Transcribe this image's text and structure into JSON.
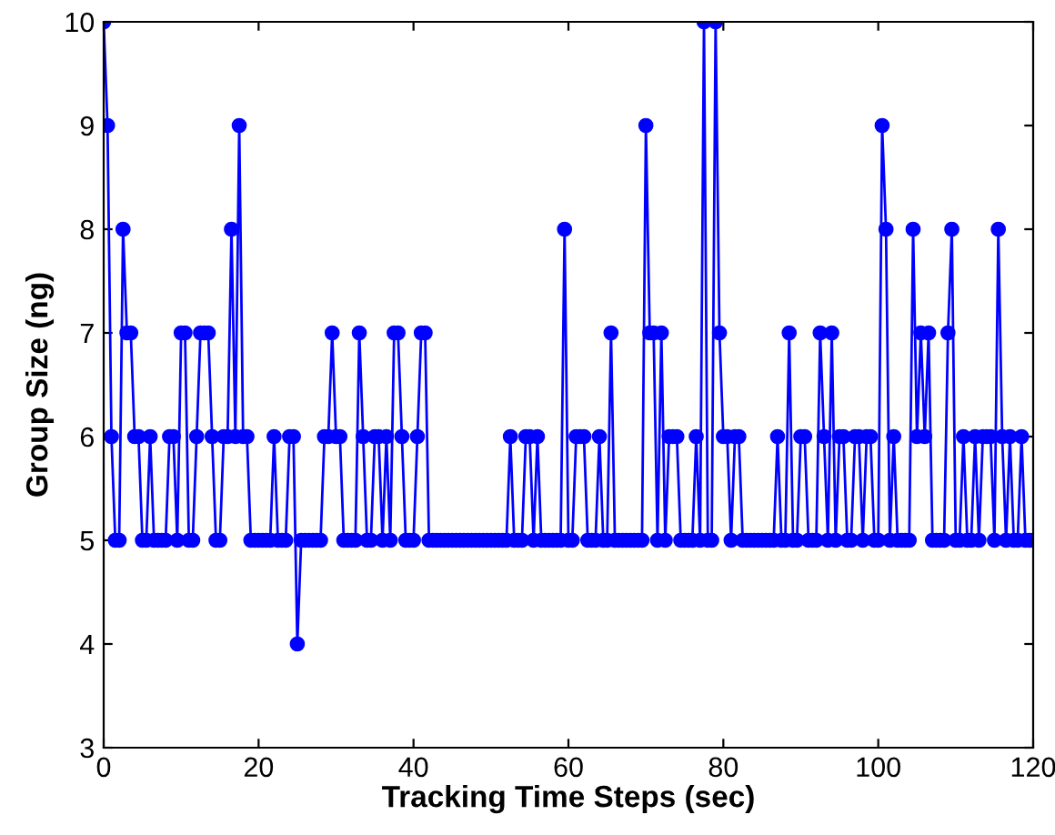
{
  "chart_data": {
    "type": "line",
    "xlabel": "Tracking Time Steps (sec)",
    "ylabel": "Group Size (ng)",
    "xlim": [
      0,
      120
    ],
    "xticks": [
      0,
      20,
      40,
      60,
      80,
      100,
      120
    ],
    "ylim": [
      3,
      10
    ],
    "yticks": [
      3,
      4,
      5,
      6,
      7,
      8,
      9,
      10
    ],
    "grid": false,
    "marker": "circle",
    "line_style": "solid",
    "series": [
      {
        "color": "#0000ff",
        "x": [
          0,
          0.5,
          1,
          1.5,
          2,
          2.5,
          3,
          3.5,
          4,
          4.5,
          5,
          5.5,
          6,
          6.5,
          7,
          7.5,
          8,
          8.5,
          9,
          9.5,
          10,
          10.5,
          11,
          11.5,
          12,
          12.5,
          13,
          13.5,
          14,
          14.5,
          15,
          15.5,
          16,
          16.5,
          17,
          17.5,
          18,
          18.5,
          19,
          19.5,
          20,
          20.5,
          21,
          21.5,
          22,
          22.5,
          23,
          23.5,
          24,
          24.5,
          25,
          25.5,
          26,
          26.5,
          27,
          27.5,
          28,
          28.5,
          29,
          29.5,
          30,
          30.5,
          31,
          31.5,
          32,
          32.5,
          33,
          33.5,
          34,
          34.5,
          35,
          35.5,
          36,
          36.5,
          37,
          37.5,
          38,
          38.5,
          39,
          39.5,
          40,
          40.5,
          41,
          41.5,
          42,
          42.5,
          43,
          43.5,
          44,
          44.5,
          45,
          45.5,
          46,
          46.5,
          47,
          47.5,
          48,
          48.5,
          49,
          49.5,
          50,
          50.5,
          51,
          51.5,
          52,
          52.5,
          53,
          53.5,
          54,
          54.5,
          55,
          55.5,
          56,
          56.5,
          57,
          57.5,
          58,
          58.5,
          59,
          59.5,
          60,
          60.5,
          61,
          61.5,
          62,
          62.5,
          63,
          63.5,
          64,
          64.5,
          65,
          65.5,
          66,
          66.5,
          67,
          67.5,
          68,
          68.5,
          69,
          69.5,
          70,
          70.5,
          71,
          71.5,
          72,
          72.5,
          73,
          73.5,
          74,
          74.5,
          75,
          75.5,
          76,
          76.5,
          77,
          77.5,
          78,
          78.5,
          79,
          79.5,
          80,
          80.5,
          81,
          81.5,
          82,
          82.5,
          83,
          83.5,
          84,
          84.5,
          85,
          85.5,
          86,
          86.5,
          87,
          87.5,
          88,
          88.5,
          89,
          89.5,
          90,
          90.5,
          91,
          91.5,
          92,
          92.5,
          93,
          93.5,
          94,
          94.5,
          95,
          95.5,
          96,
          96.5,
          97,
          97.5,
          98,
          98.5,
          99,
          99.5,
          100,
          100.5,
          101,
          101.5,
          102,
          102.5,
          103,
          103.5,
          104,
          104.5,
          105,
          105.5,
          106,
          106.5,
          107,
          107.5,
          108,
          108.5,
          109,
          109.5,
          110,
          110.5,
          111,
          111.5,
          112,
          112.5,
          113,
          113.5,
          114,
          114.5,
          115,
          115.5,
          116,
          116.5,
          117,
          117.5,
          118,
          118.5,
          119,
          119.5,
          120
        ],
        "values": [
          10,
          9,
          6,
          5,
          5,
          8,
          7,
          7,
          6,
          6,
          5,
          5,
          6,
          5,
          5,
          5,
          5,
          6,
          6,
          5,
          7,
          7,
          5,
          5,
          6,
          7,
          7,
          7,
          6,
          5,
          5,
          6,
          6,
          8,
          6,
          9,
          6,
          6,
          5,
          5,
          5,
          5,
          5,
          5,
          6,
          5,
          5,
          5,
          6,
          6,
          4,
          5,
          5,
          5,
          5,
          5,
          5,
          6,
          6,
          7,
          6,
          6,
          5,
          5,
          5,
          5,
          7,
          6,
          5,
          5,
          6,
          6,
          5,
          6,
          5,
          7,
          7,
          6,
          5,
          5,
          5,
          6,
          7,
          7,
          5,
          5,
          5,
          5,
          5,
          5,
          5,
          5,
          5,
          5,
          5,
          5,
          5,
          5,
          5,
          5,
          5,
          5,
          5,
          5,
          5,
          6,
          5,
          5,
          5,
          6,
          6,
          5,
          6,
          5,
          5,
          5,
          5,
          5,
          5,
          8,
          5,
          5,
          6,
          6,
          6,
          5,
          5,
          5,
          6,
          5,
          5,
          7,
          5,
          5,
          5,
          5,
          5,
          5,
          5,
          5,
          9,
          7,
          7,
          5,
          7,
          5,
          6,
          6,
          6,
          5,
          5,
          5,
          5,
          6,
          5,
          10,
          5,
          5,
          10,
          7,
          6,
          6,
          5,
          6,
          6,
          5,
          5,
          5,
          5,
          5,
          5,
          5,
          5,
          5,
          6,
          5,
          5,
          7,
          5,
          5,
          6,
          6,
          5,
          5,
          5,
          7,
          6,
          5,
          7,
          5,
          6,
          6,
          5,
          5,
          6,
          6,
          5,
          6,
          6,
          5,
          5,
          9,
          8,
          5,
          6,
          5,
          5,
          5,
          5,
          8,
          6,
          7,
          6,
          7,
          5,
          5,
          5,
          5,
          7,
          8,
          5,
          5,
          6,
          5,
          5,
          6,
          5,
          6,
          6,
          6,
          5,
          8,
          6,
          5,
          6,
          5,
          5,
          6,
          5,
          5,
          5
        ]
      }
    ]
  }
}
